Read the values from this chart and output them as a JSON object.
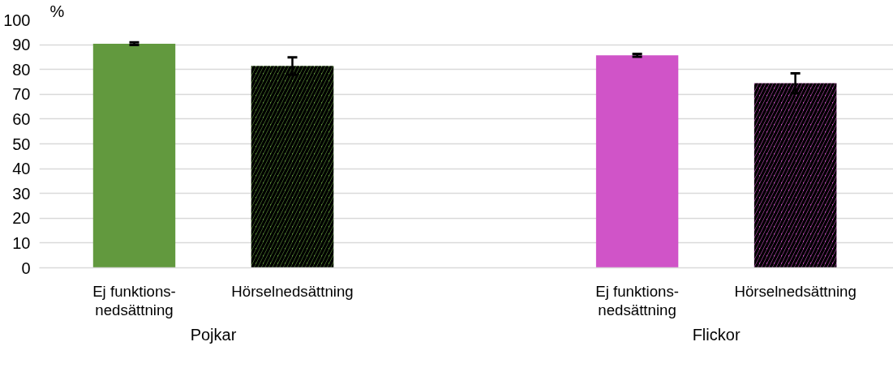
{
  "chart_data": {
    "type": "bar",
    "ylabel": "%",
    "categories": [
      "Ej funktions-\nnedsättning",
      "Hörselnedsättning",
      "Ej funktions-\nnedsättning",
      "Hörselnedsättning"
    ],
    "values": [
      90.4,
      81.4,
      85.7,
      74.4
    ],
    "errors": [
      0.5,
      3.5,
      0.6,
      4
    ],
    "colors": [
      "#62993e",
      "#62993e",
      "#d054c8",
      "#d054c8"
    ],
    "annotations": [
      "Pojkar",
      "Flickor"
    ],
    "ylim": [
      0,
      100
    ],
    "yticks": [
      0,
      10,
      20,
      30,
      40,
      50,
      60,
      70,
      80,
      90,
      100
    ],
    "grid": "y"
  }
}
